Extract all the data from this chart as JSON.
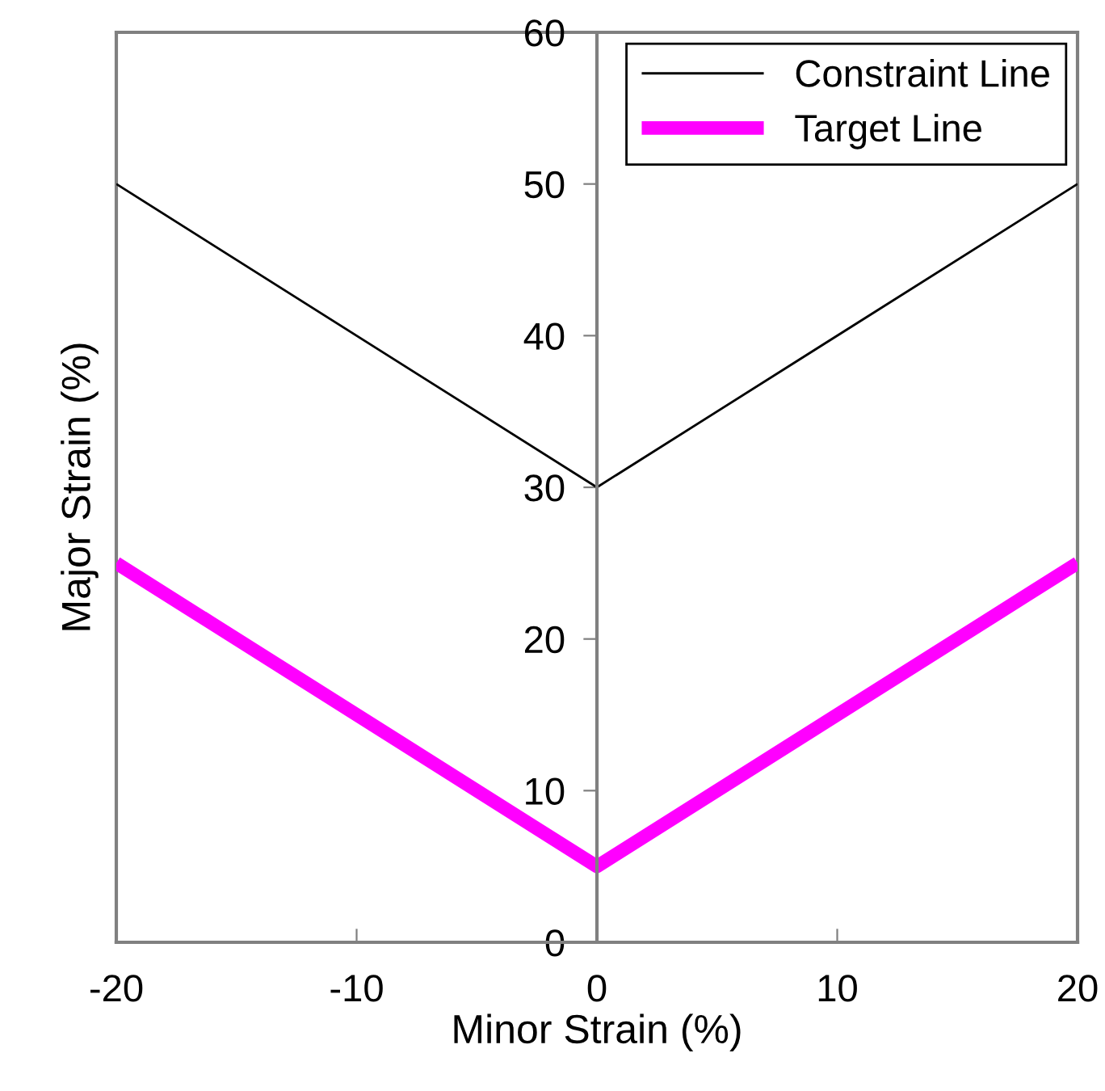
{
  "chart_data": {
    "type": "line",
    "xlabel": "Minor Strain (%)",
    "ylabel": "Major Strain (%)",
    "x": [
      -20,
      0,
      20
    ],
    "series": [
      {
        "name": "Constraint Line",
        "color": "#000000",
        "values": [
          50,
          30,
          50
        ]
      },
      {
        "name": "Target Line",
        "color": "#ff00ff",
        "values": [
          25,
          5,
          25
        ]
      }
    ],
    "xlim": [
      -20,
      20
    ],
    "ylim": [
      0,
      60
    ],
    "xticks": [
      -20,
      -10,
      0,
      10,
      20
    ],
    "yticks": [
      0,
      10,
      20,
      30,
      40,
      50,
      60
    ],
    "grid": false,
    "legend": "top right",
    "marker": "none",
    "line_style": "solid"
  }
}
